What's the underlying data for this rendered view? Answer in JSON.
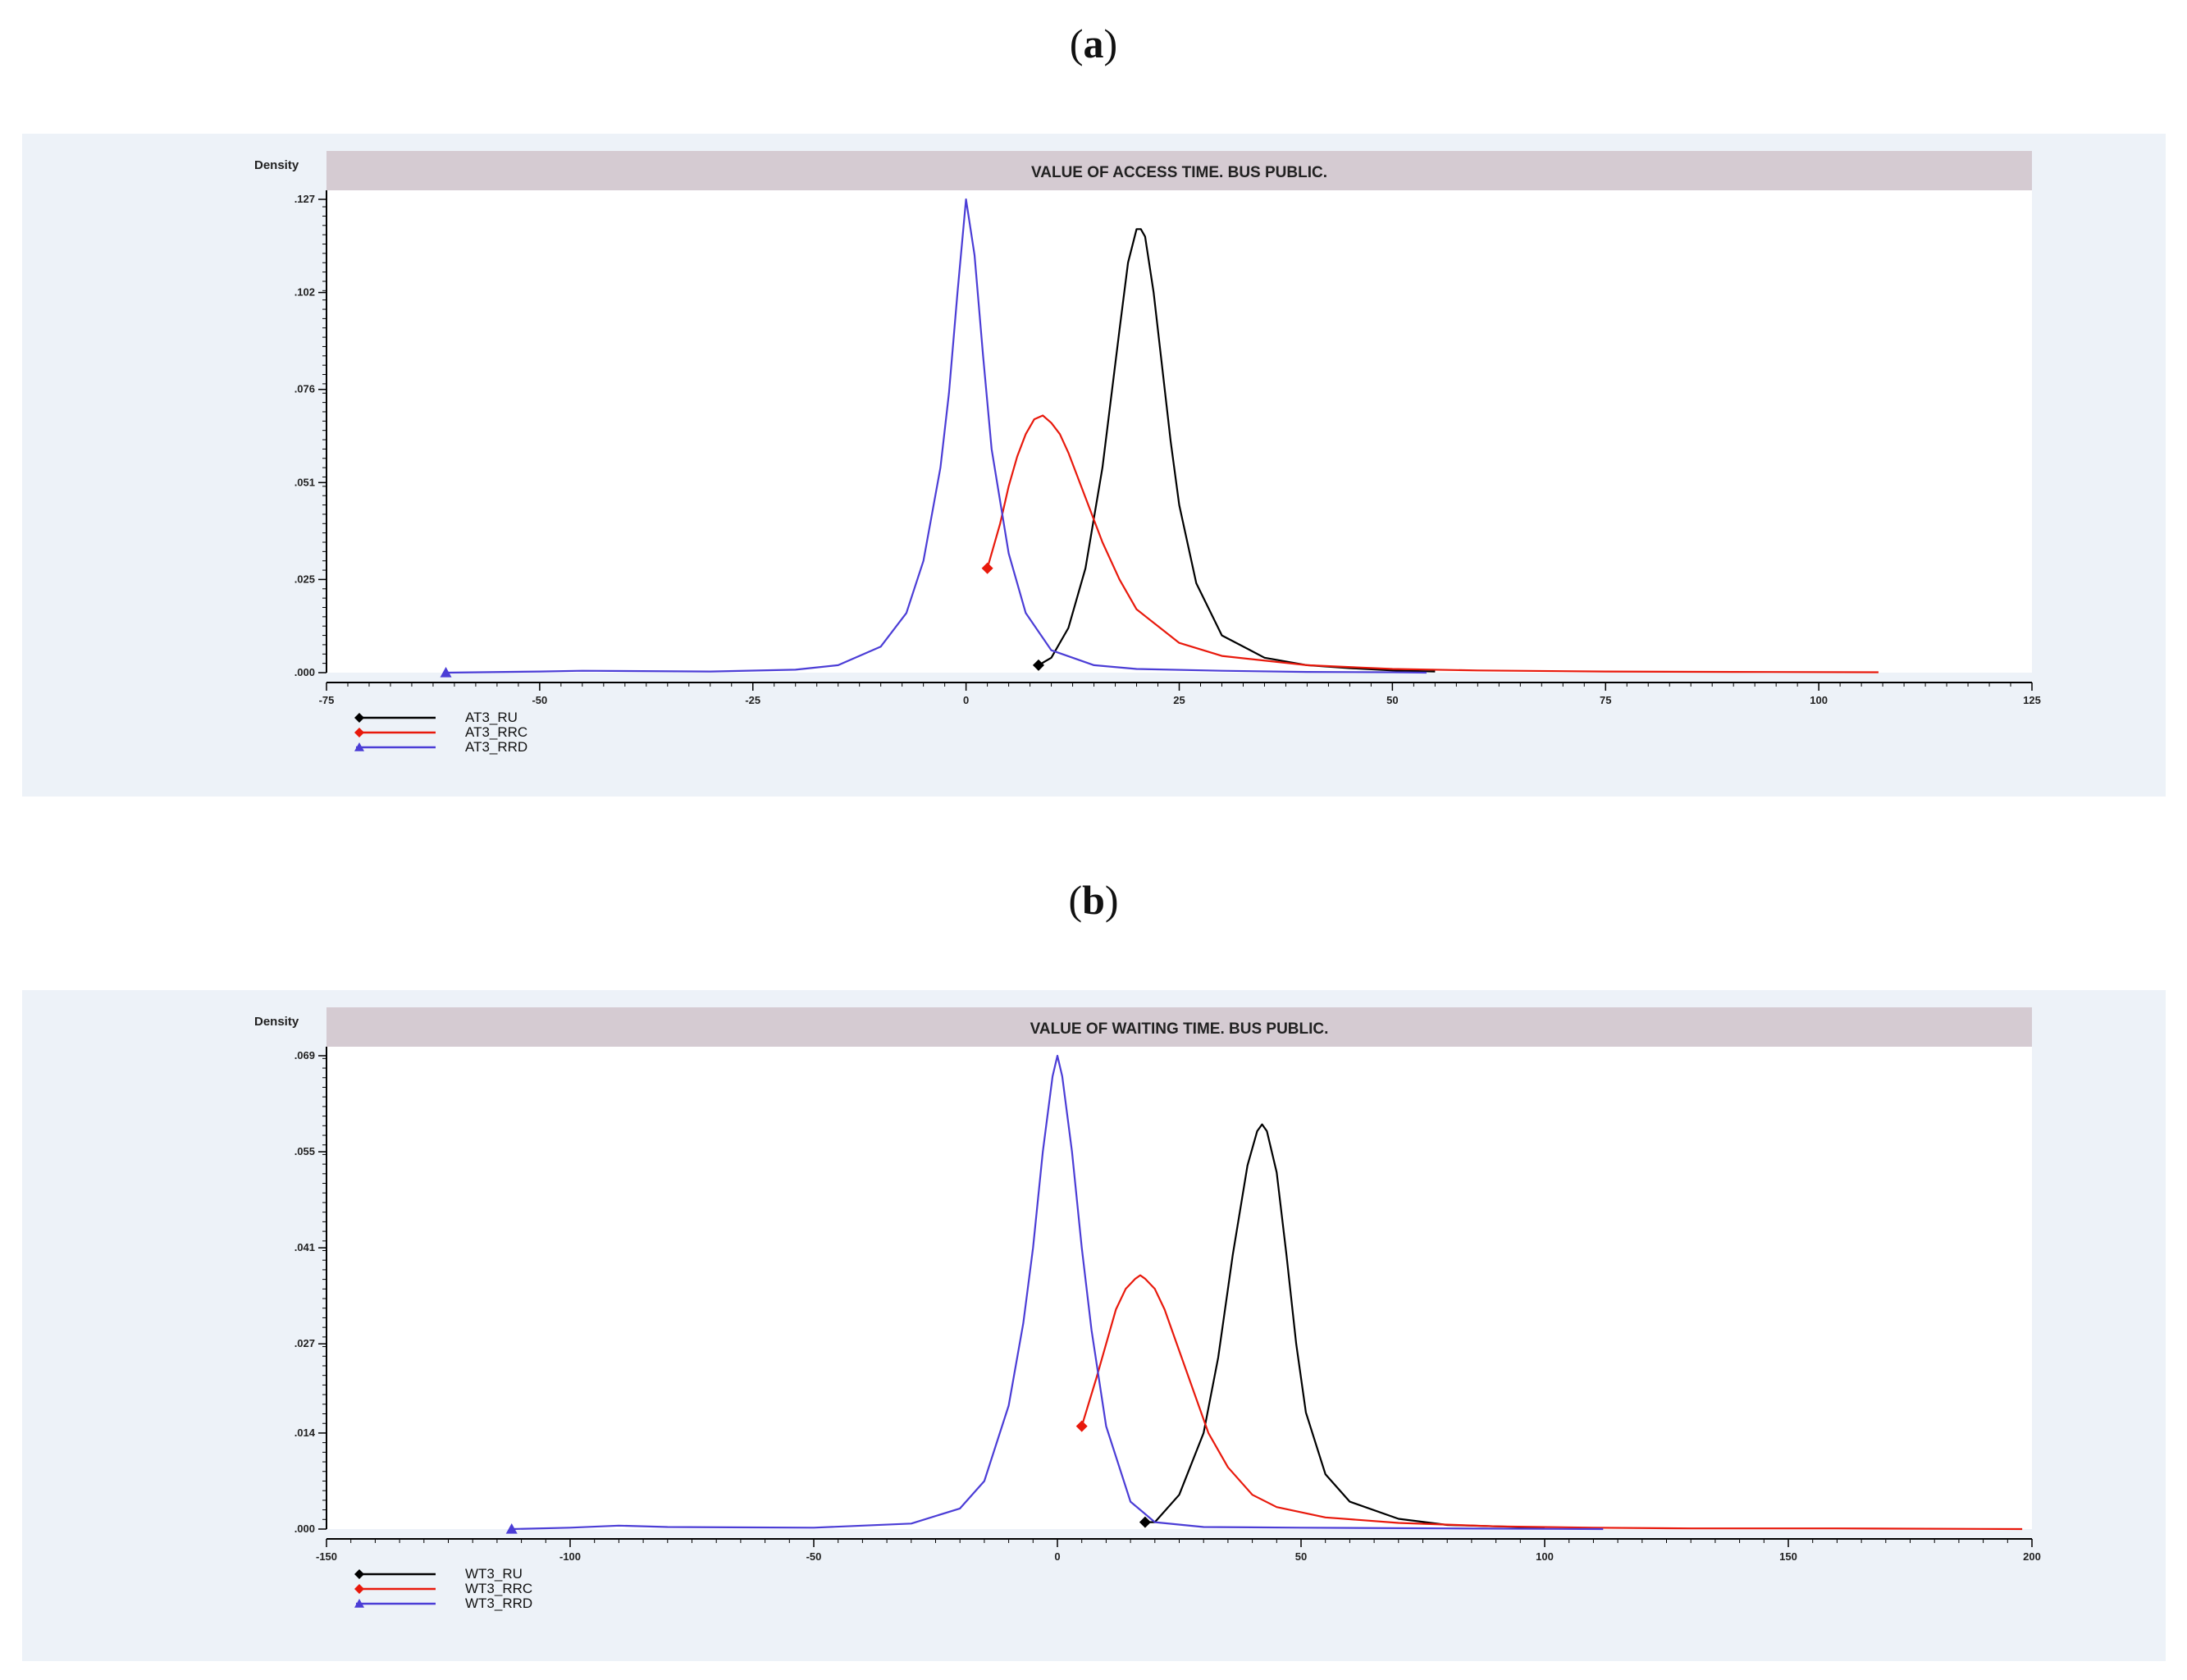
{
  "panel_labels": [
    "a",
    "b"
  ],
  "chart_data": [
    {
      "type": "line",
      "title": "VALUE OF ACCESS TIME. BUS PUBLIC.",
      "ylabel": "Density",
      "xlabel": "",
      "xlim": [
        -75,
        125
      ],
      "ylim": [
        0,
        0.127
      ],
      "x_ticks": [
        -75,
        -50,
        -25,
        0,
        25,
        50,
        75,
        100,
        125
      ],
      "x_tick_labels": [
        "-75",
        "-50",
        "-25",
        "0",
        "25",
        "50",
        "75",
        "100",
        "125"
      ],
      "y_ticks": [
        0,
        0.025,
        0.051,
        0.076,
        0.102,
        0.127
      ],
      "y_tick_labels": [
        ".000",
        ".025",
        ".051",
        ".076",
        ".102",
        ".127"
      ],
      "legend_position": "bottom-left",
      "series": [
        {
          "name": "AT3_RU",
          "color": "#000000",
          "marker": "diamond",
          "x": [
            8.5,
            10,
            12,
            14,
            16,
            18,
            19,
            20,
            20.5,
            21,
            22,
            23,
            24,
            25,
            27,
            30,
            35,
            40,
            45,
            50,
            55
          ],
          "y": [
            0.002,
            0.004,
            0.012,
            0.028,
            0.055,
            0.092,
            0.11,
            0.119,
            0.119,
            0.117,
            0.102,
            0.082,
            0.062,
            0.045,
            0.024,
            0.01,
            0.004,
            0.002,
            0.0012,
            0.0006,
            0.0003
          ]
        },
        {
          "name": "AT3_RRC",
          "color": "#e8190c",
          "marker": "diamond",
          "x": [
            2.5,
            4,
            5,
            6,
            7,
            8,
            9,
            10,
            11,
            12,
            14,
            16,
            18,
            20,
            25,
            30,
            40,
            50,
            60,
            75,
            90,
            107
          ],
          "y": [
            0.028,
            0.04,
            0.05,
            0.058,
            0.064,
            0.068,
            0.069,
            0.067,
            0.064,
            0.059,
            0.047,
            0.035,
            0.025,
            0.017,
            0.008,
            0.0045,
            0.002,
            0.001,
            0.0006,
            0.0003,
            0.0002,
            0.0001
          ]
        },
        {
          "name": "AT3_RRD",
          "color": "#4b3dd6",
          "marker": "triangle",
          "x": [
            -61,
            -50,
            -45,
            -30,
            -20,
            -15,
            -10,
            -7,
            -5,
            -3,
            -2,
            -1,
            0,
            1,
            2,
            3,
            5,
            7,
            10,
            15,
            20,
            30,
            40,
            50,
            54
          ],
          "y": [
            0,
            0.0003,
            0.0005,
            0.0003,
            0.0008,
            0.002,
            0.007,
            0.016,
            0.03,
            0.055,
            0.075,
            0.102,
            0.127,
            0.112,
            0.085,
            0.06,
            0.032,
            0.016,
            0.006,
            0.002,
            0.001,
            0.0005,
            0.0002,
            0.0001,
            0
          ]
        }
      ]
    },
    {
      "type": "line",
      "title": "VALUE OF WAITING TIME. BUS PUBLIC.",
      "ylabel": "Density",
      "xlabel": "",
      "xlim": [
        -150,
        200
      ],
      "ylim": [
        0,
        0.069
      ],
      "x_ticks": [
        -150,
        -100,
        -50,
        0,
        50,
        100,
        150,
        200
      ],
      "x_tick_labels": [
        "-150",
        "-100",
        "-50",
        "0",
        "50",
        "100",
        "150",
        "200"
      ],
      "y_ticks": [
        0,
        0.014,
        0.027,
        0.041,
        0.055,
        0.069
      ],
      "y_tick_labels": [
        ".000",
        ".014",
        ".027",
        ".041",
        ".055",
        ".069"
      ],
      "legend_position": "bottom-left",
      "series": [
        {
          "name": "WT3_RU",
          "color": "#000000",
          "marker": "diamond",
          "x": [
            18,
            20,
            25,
            30,
            33,
            36,
            39,
            41,
            42,
            43,
            45,
            47,
            49,
            51,
            55,
            60,
            70,
            80,
            90,
            100
          ],
          "y": [
            0.001,
            0.001,
            0.005,
            0.014,
            0.025,
            0.04,
            0.053,
            0.058,
            0.059,
            0.058,
            0.052,
            0.04,
            0.027,
            0.017,
            0.008,
            0.004,
            0.0015,
            0.0006,
            0.0004,
            0.0002
          ]
        },
        {
          "name": "WT3_RRC",
          "color": "#e8190c",
          "marker": "diamond",
          "x": [
            5,
            8,
            10,
            12,
            14,
            16,
            17,
            18,
            20,
            22,
            25,
            28,
            31,
            35,
            40,
            45,
            55,
            70,
            90,
            110,
            130,
            160,
            198
          ],
          "y": [
            0.015,
            0.022,
            0.027,
            0.032,
            0.035,
            0.0365,
            0.037,
            0.0365,
            0.035,
            0.032,
            0.026,
            0.02,
            0.014,
            0.009,
            0.005,
            0.0032,
            0.0017,
            0.0009,
            0.0004,
            0.0002,
            0.0001,
            0.0001,
            0
          ]
        },
        {
          "name": "WT3_RRD",
          "color": "#4b3dd6",
          "marker": "triangle",
          "x": [
            -112,
            -100,
            -90,
            -80,
            -50,
            -30,
            -20,
            -15,
            -10,
            -7,
            -5,
            -3,
            -1,
            0,
            1,
            3,
            5,
            7,
            10,
            15,
            20,
            30,
            50,
            80,
            112
          ],
          "y": [
            0,
            0.0002,
            0.0005,
            0.0003,
            0.0002,
            0.0008,
            0.003,
            0.007,
            0.018,
            0.03,
            0.041,
            0.055,
            0.066,
            0.069,
            0.066,
            0.055,
            0.041,
            0.029,
            0.015,
            0.004,
            0.001,
            0.0003,
            0.0002,
            0.0001,
            0
          ]
        }
      ]
    }
  ]
}
